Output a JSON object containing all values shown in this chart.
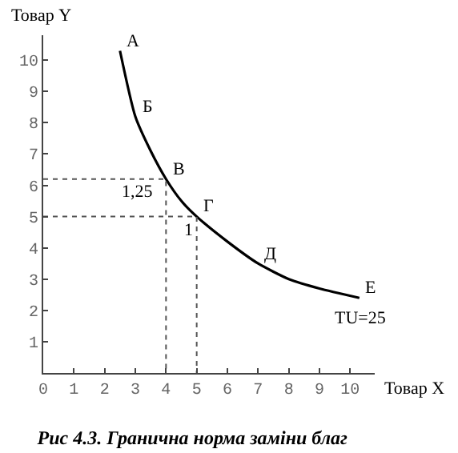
{
  "chart_data": {
    "type": "line",
    "title": "Рис 4.3. Гранична норма заміни благ",
    "xlabel": "Товар X",
    "ylabel": "Товар Y",
    "xlim": [
      0,
      10.8
    ],
    "ylim": [
      0,
      10.8
    ],
    "xticks": [
      0,
      1,
      2,
      3,
      4,
      5,
      6,
      7,
      8,
      9,
      10
    ],
    "yticks": [
      1,
      2,
      3,
      4,
      5,
      6,
      7,
      8,
      9,
      10
    ],
    "marker": "none",
    "series": [
      {
        "color": "#000000",
        "line_style": "solid",
        "x": [
          2.5,
          3,
          3.5,
          4,
          4.5,
          5,
          6,
          7,
          8,
          9,
          10.3
        ],
        "values": [
          10.3,
          8.2,
          7.1,
          6.2,
          5.5,
          5,
          4.2,
          3.5,
          3.0,
          2.7,
          2.4
        ]
      },
      {
        "color": "#555555",
        "line_style": "dotted",
        "x": [
          0,
          4,
          4
        ],
        "values": [
          6.2,
          6.2,
          0
        ]
      },
      {
        "color": "#555555",
        "line_style": "dotted",
        "x": [
          0,
          5,
          5
        ],
        "values": [
          5,
          5,
          0
        ]
      }
    ],
    "annotations": [
      {
        "text": "А",
        "x": 2.5,
        "y": 10.3
      },
      {
        "text": "Б",
        "x": 3,
        "y": 8.2
      },
      {
        "text": "В",
        "x": 4,
        "y": 6.2
      },
      {
        "text": "Г",
        "x": 5,
        "y": 5
      },
      {
        "text": "Д",
        "x": 7,
        "y": 3.5
      },
      {
        "text": "Е",
        "x": 10.3,
        "y": 2.4
      },
      "TU=25",
      "1,25",
      "1"
    ]
  }
}
